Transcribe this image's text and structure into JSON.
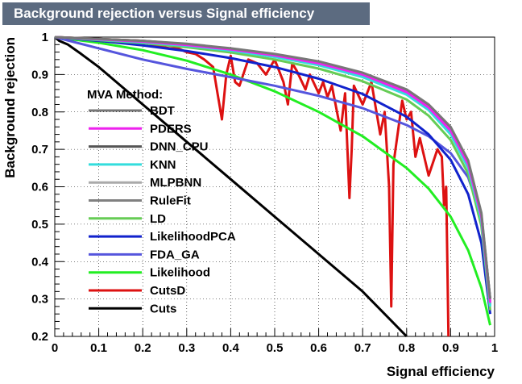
{
  "chart_data": {
    "type": "line",
    "title": "Background rejection versus Signal efficiency",
    "xlabel": "Signal efficiency",
    "ylabel": "Background rejection",
    "xlim": [
      0,
      1
    ],
    "ylim": [
      0.2,
      1
    ],
    "x_ticks": [
      "0",
      "0.1",
      "0.2",
      "0.3",
      "0.4",
      "0.5",
      "0.6",
      "0.7",
      "0.8",
      "0.9",
      "1"
    ],
    "y_ticks": [
      "0.2",
      "0.3",
      "0.4",
      "0.5",
      "0.6",
      "0.7",
      "0.8",
      "0.9",
      "1"
    ],
    "grid": true,
    "legend_title": "MVA Method:",
    "legend_position": "center-left",
    "series": [
      {
        "name": "BDT",
        "color": "#777777",
        "x": [
          0,
          0.1,
          0.2,
          0.3,
          0.4,
          0.5,
          0.6,
          0.7,
          0.8,
          0.85,
          0.9,
          0.94,
          0.97,
          0.99
        ],
        "y": [
          1,
          0.995,
          0.99,
          0.982,
          0.97,
          0.955,
          0.935,
          0.905,
          0.86,
          0.82,
          0.76,
          0.67,
          0.53,
          0.3
        ]
      },
      {
        "name": "PDERS",
        "color": "#ee22ee",
        "x": [
          0,
          0.1,
          0.2,
          0.3,
          0.4,
          0.5,
          0.6,
          0.7,
          0.8,
          0.85,
          0.9,
          0.94,
          0.97,
          0.99
        ],
        "y": [
          1,
          0.994,
          0.988,
          0.979,
          0.967,
          0.951,
          0.93,
          0.9,
          0.853,
          0.812,
          0.75,
          0.66,
          0.52,
          0.29
        ]
      },
      {
        "name": "DNN_CPU",
        "color": "#555555",
        "x": [
          0,
          0.1,
          0.2,
          0.3,
          0.4,
          0.5,
          0.6,
          0.7,
          0.8,
          0.85,
          0.9,
          0.94,
          0.97,
          0.99
        ],
        "y": [
          1,
          0.995,
          0.99,
          0.981,
          0.969,
          0.953,
          0.932,
          0.902,
          0.857,
          0.816,
          0.755,
          0.665,
          0.525,
          0.3
        ]
      },
      {
        "name": "KNN",
        "color": "#33dddd",
        "x": [
          0,
          0.1,
          0.2,
          0.3,
          0.4,
          0.5,
          0.6,
          0.7,
          0.8,
          0.85,
          0.9,
          0.94,
          0.97,
          0.99
        ],
        "y": [
          1,
          0.993,
          0.986,
          0.977,
          0.964,
          0.947,
          0.925,
          0.893,
          0.846,
          0.805,
          0.74,
          0.65,
          0.51,
          0.28
        ]
      },
      {
        "name": "MLPBNN",
        "color": "#aaaaaa",
        "x": [
          0,
          0.1,
          0.2,
          0.3,
          0.4,
          0.5,
          0.6,
          0.7,
          0.8,
          0.85,
          0.9,
          0.94,
          0.97,
          0.99
        ],
        "y": [
          1,
          0.994,
          0.988,
          0.98,
          0.968,
          0.952,
          0.931,
          0.901,
          0.855,
          0.814,
          0.752,
          0.662,
          0.522,
          0.295
        ]
      },
      {
        "name": "RuleFit",
        "color": "#808080",
        "x": [
          0,
          0.1,
          0.2,
          0.3,
          0.4,
          0.5,
          0.6,
          0.7,
          0.8,
          0.85,
          0.9,
          0.94,
          0.97,
          0.99
        ],
        "y": [
          1,
          0.994,
          0.987,
          0.978,
          0.966,
          0.949,
          0.928,
          0.897,
          0.85,
          0.809,
          0.745,
          0.655,
          0.515,
          0.285
        ]
      },
      {
        "name": "LD",
        "color": "#66cc55",
        "x": [
          0,
          0.1,
          0.2,
          0.3,
          0.4,
          0.5,
          0.6,
          0.7,
          0.8,
          0.85,
          0.9,
          0.94,
          0.97,
          0.99
        ],
        "y": [
          1,
          0.992,
          0.984,
          0.973,
          0.959,
          0.94,
          0.916,
          0.882,
          0.833,
          0.79,
          0.725,
          0.635,
          0.495,
          0.27
        ]
      },
      {
        "name": "LikelihoodPCA",
        "color": "#1122cc",
        "x": [
          0,
          0.1,
          0.2,
          0.3,
          0.4,
          0.5,
          0.6,
          0.7,
          0.8,
          0.85,
          0.9,
          0.94,
          0.97,
          0.99
        ],
        "y": [
          1,
          0.99,
          0.978,
          0.963,
          0.944,
          0.92,
          0.889,
          0.848,
          0.787,
          0.74,
          0.672,
          0.58,
          0.45,
          0.26
        ]
      },
      {
        "name": "FDA_GA",
        "color": "#5555dd",
        "x": [
          0,
          0.1,
          0.2,
          0.3,
          0.4,
          0.5,
          0.6,
          0.7,
          0.8,
          0.85,
          0.9,
          0.94,
          0.97,
          0.99
        ],
        "y": [
          1,
          0.97,
          0.94,
          0.915,
          0.893,
          0.87,
          0.843,
          0.81,
          0.765,
          0.735,
          0.69,
          0.625,
          0.52,
          0.3
        ]
      },
      {
        "name": "Likelihood",
        "color": "#22ee22",
        "x": [
          0,
          0.1,
          0.2,
          0.3,
          0.4,
          0.5,
          0.6,
          0.7,
          0.8,
          0.85,
          0.9,
          0.94,
          0.97,
          0.99
        ],
        "y": [
          1,
          0.985,
          0.965,
          0.937,
          0.9,
          0.855,
          0.8,
          0.735,
          0.65,
          0.595,
          0.52,
          0.43,
          0.33,
          0.23
        ]
      },
      {
        "name": "CutsD",
        "color": "#dd1111",
        "x": [
          0,
          0.1,
          0.2,
          0.22,
          0.24,
          0.26,
          0.28,
          0.3,
          0.32,
          0.34,
          0.36,
          0.37,
          0.38,
          0.39,
          0.4,
          0.41,
          0.42,
          0.44,
          0.46,
          0.48,
          0.5,
          0.52,
          0.53,
          0.54,
          0.55,
          0.57,
          0.58,
          0.6,
          0.61,
          0.62,
          0.63,
          0.65,
          0.66,
          0.67,
          0.675,
          0.68,
          0.7,
          0.72,
          0.74,
          0.75,
          0.76,
          0.765,
          0.77,
          0.79,
          0.8,
          0.81,
          0.82,
          0.83,
          0.85,
          0.87,
          0.88,
          0.885,
          0.89,
          0.895
        ],
        "y": [
          1,
          0.995,
          0.99,
          0.98,
          0.975,
          0.97,
          0.97,
          0.96,
          0.955,
          0.94,
          0.92,
          0.85,
          0.78,
          0.9,
          0.95,
          0.88,
          0.87,
          0.94,
          0.93,
          0.9,
          0.94,
          0.88,
          0.82,
          0.93,
          0.91,
          0.86,
          0.9,
          0.85,
          0.88,
          0.84,
          0.87,
          0.75,
          0.85,
          0.57,
          0.7,
          0.87,
          0.82,
          0.88,
          0.74,
          0.8,
          0.6,
          0.28,
          0.66,
          0.83,
          0.78,
          0.8,
          0.68,
          0.73,
          0.63,
          0.7,
          0.68,
          0.55,
          0.6,
          0.2
        ]
      },
      {
        "name": "Cuts",
        "color": "#000000",
        "x": [
          0,
          0.01,
          0.03,
          0.06,
          0.1,
          0.2,
          0.3,
          0.4,
          0.5,
          0.6,
          0.7,
          0.75,
          0.8
        ],
        "y": [
          1,
          0.99,
          0.98,
          0.955,
          0.92,
          0.82,
          0.72,
          0.62,
          0.52,
          0.42,
          0.32,
          0.26,
          0.2
        ]
      }
    ]
  }
}
